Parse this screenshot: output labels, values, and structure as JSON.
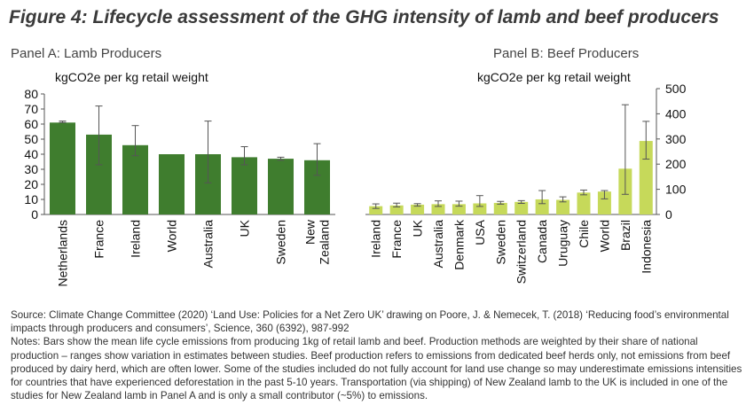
{
  "figure_title": "Figure 4: Lifecycle assessment of the GHG intensity of lamb and beef producers",
  "colors": {
    "lamb_bar": "#3f7d2e",
    "beef_bar": "#c6d95a",
    "axis": "#555555",
    "error": "#555555"
  },
  "chart_data": [
    {
      "type": "bar",
      "panel_title": "Panel A: Lamb Producers",
      "ylabel": "kgCO2e per kg retail weight",
      "ylim": [
        0,
        80
      ],
      "yticks": [
        "0",
        "10",
        "20",
        "30",
        "40",
        "50",
        "60",
        "70",
        "80"
      ],
      "categories": [
        "Netherlands",
        "France",
        "Ireland",
        "World",
        "Australia",
        "UK",
        "Sweden",
        "New Zealand"
      ],
      "values": [
        61,
        53,
        46,
        40,
        40,
        38,
        37,
        36
      ],
      "error_low": [
        61,
        33,
        39,
        40,
        21,
        33,
        36,
        26
      ],
      "error_high": [
        62,
        72,
        59,
        40,
        62,
        45,
        38,
        47
      ],
      "y_axis_side": "left"
    },
    {
      "type": "bar",
      "panel_title": "Panel B: Beef Producers",
      "ylabel": "kgCO2e per kg retail weight",
      "ylim": [
        0,
        500
      ],
      "yticks": [
        "0",
        "100",
        "200",
        "300",
        "400",
        "500"
      ],
      "categories": [
        "Ireland",
        "France",
        "UK",
        "Australia",
        "Denmark",
        "USA",
        "Sweden",
        "Switzerland",
        "Canada",
        "Uruguay",
        "Chile",
        "World",
        "Brazil",
        "Indonesia"
      ],
      "values": [
        33,
        36,
        39,
        41,
        41,
        44,
        46,
        50,
        60,
        58,
        87,
        91,
        182,
        292
      ],
      "error_low": [
        24,
        30,
        33,
        32,
        33,
        32,
        41,
        44,
        43,
        50,
        78,
        62,
        80,
        220
      ],
      "error_high": [
        42,
        45,
        43,
        54,
        53,
        75,
        52,
        55,
        95,
        70,
        97,
        95,
        436,
        370
      ],
      "y_axis_side": "right"
    }
  ],
  "source_text": "Source: Climate Change Committee (2020) ‘Land Use: Policies for a Net Zero UK’ drawing on Poore, J. & Nemecek, T. (2018) ‘Reducing food’s environmental impacts through producers and consumers’, Science, 360 (6392), 987-992",
  "notes_text": "Notes: Bars show the mean life cycle emissions from producing 1kg of retail lamb and beef. Production methods are weighted by their share of national production – ranges show variation in estimates between studies. Beef production refers to emissions from dedicated beef herds only, not emissions from beef produced by dairy herd, which are often lower. Some of the studies included do not fully account for land use change so may underestimate emissions intensities for countries that have experienced deforestation in the past 5-10 years. Transportation (via shipping) of New Zealand lamb to the UK is included in one of the studies for New Zealand lamb in Panel A and is only a small contributor (~5%) to emissions."
}
